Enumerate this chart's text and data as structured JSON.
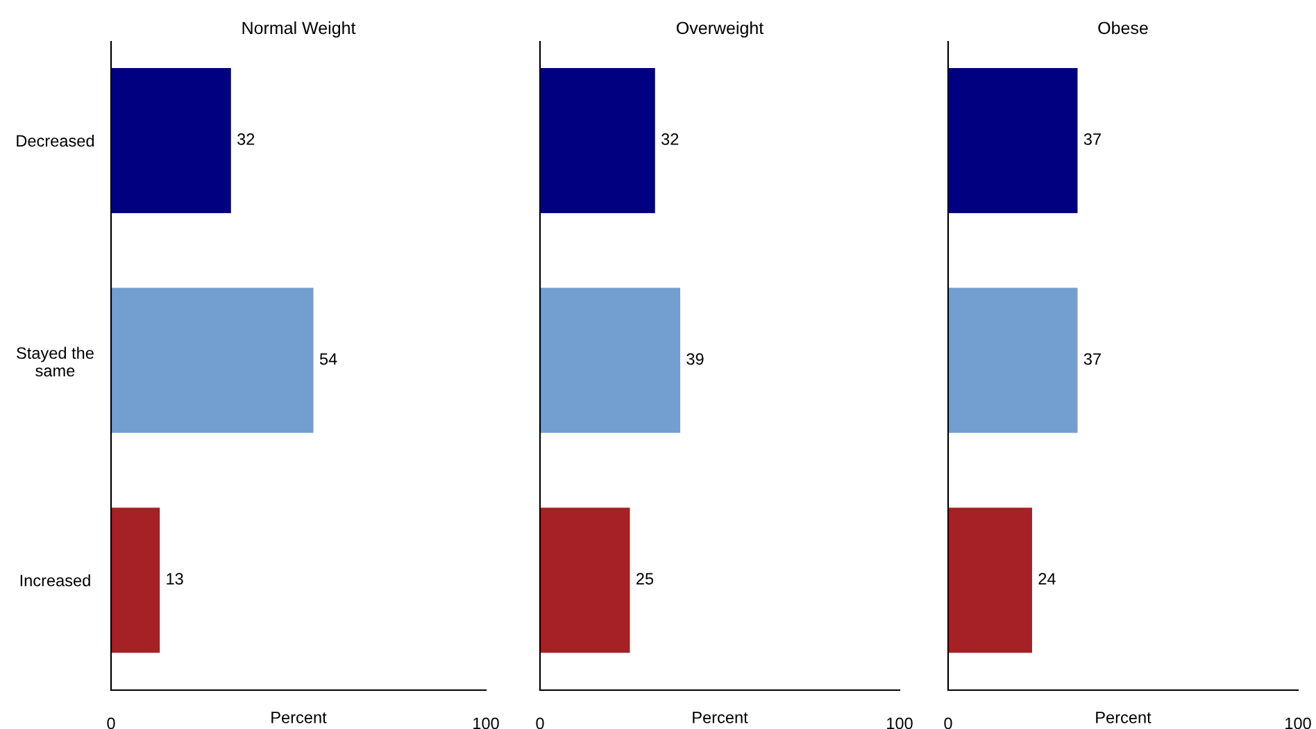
{
  "chart_data": [
    {
      "type": "bar",
      "orientation": "horizontal",
      "title": "Normal Weight",
      "xlabel": "Percent",
      "categories": [
        "Decreased",
        "Stayed the\nsame",
        "Increased"
      ],
      "values": [
        32,
        54,
        13
      ],
      "colors": [
        "#000080",
        "#729fcf",
        "#a52125"
      ],
      "xlim": [
        0,
        100
      ],
      "xticks": [
        0,
        100
      ],
      "data_labels": true,
      "grid": false,
      "legend": false
    },
    {
      "type": "bar",
      "orientation": "horizontal",
      "title": "Overweight",
      "xlabel": "Percent",
      "categories": [
        null,
        null,
        null
      ],
      "values": [
        32,
        39,
        25
      ],
      "colors": [
        "#000080",
        "#729fcf",
        "#a52125"
      ],
      "xlim": [
        0,
        100
      ],
      "xticks": [
        0,
        100
      ],
      "data_labels": true,
      "grid": false,
      "legend": false,
      "tick_labels": "x"
    },
    {
      "type": "bar",
      "orientation": "horizontal",
      "title": "Obese",
      "xlabel": "Percent",
      "categories": [
        null,
        null,
        null
      ],
      "values": [
        37,
        37,
        24
      ],
      "colors": [
        "#000080",
        "#729fcf",
        "#a52125"
      ],
      "xlim": [
        0,
        100
      ],
      "xticks": [
        0,
        100
      ],
      "data_labels": true,
      "grid": false,
      "legend": false,
      "tick_labels": "x"
    }
  ]
}
